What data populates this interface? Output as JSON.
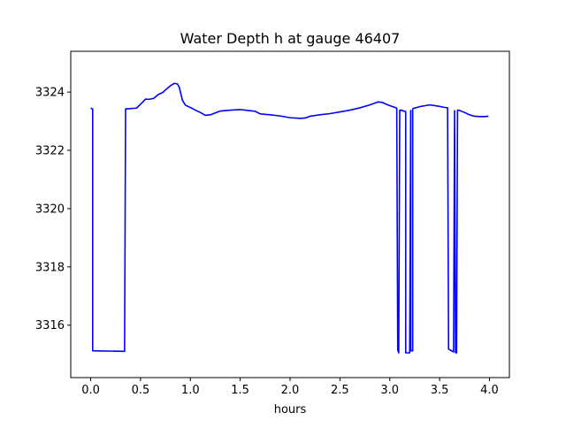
{
  "chart_data": {
    "type": "line",
    "title": "Water Depth h at gauge 46407",
    "xlabel": "hours",
    "ylabel": "",
    "xlim": [
      -0.2,
      4.2
    ],
    "ylim": [
      3314.2,
      3325.4
    ],
    "xticks": [
      0.0,
      0.5,
      1.0,
      1.5,
      2.0,
      2.5,
      3.0,
      3.5,
      4.0
    ],
    "xtick_labels": [
      "0.0",
      "0.5",
      "1.0",
      "1.5",
      "2.0",
      "2.5",
      "3.0",
      "3.5",
      "4.0"
    ],
    "yticks": [
      3316,
      3318,
      3320,
      3322,
      3324
    ],
    "ytick_labels": [
      "3316",
      "3318",
      "3320",
      "3322",
      "3324"
    ],
    "grid": false,
    "legend": "none",
    "line_color": "#0000ff",
    "series": [
      {
        "x": [
          0.0,
          0.02,
          0.02,
          0.34,
          0.35,
          0.46,
          0.52,
          0.55,
          0.58,
          0.63,
          0.68,
          0.72,
          0.76,
          0.8,
          0.84,
          0.87,
          0.89,
          0.92,
          0.95,
          1.0,
          1.05,
          1.1,
          1.15,
          1.2,
          1.3,
          1.4,
          1.5,
          1.6,
          1.65,
          1.7,
          1.8,
          1.9,
          2.0,
          2.1,
          2.15,
          2.2,
          2.3,
          2.4,
          2.5,
          2.6,
          2.7,
          2.8,
          2.88,
          2.92,
          2.98,
          3.03,
          3.07,
          3.08,
          3.09,
          3.1,
          3.11,
          3.16,
          3.16,
          3.2,
          3.21,
          3.21,
          3.23,
          3.23,
          3.24,
          3.25,
          3.25,
          3.3,
          3.4,
          3.48,
          3.54,
          3.58,
          3.59,
          3.64,
          3.65,
          3.66,
          3.67,
          3.68,
          3.69,
          3.69,
          3.75,
          3.8,
          3.85,
          3.9,
          3.95,
          3.99
        ],
        "y": [
          3323.45,
          3323.42,
          3315.12,
          3315.1,
          3323.42,
          3323.45,
          3323.65,
          3323.76,
          3323.75,
          3323.78,
          3323.92,
          3323.98,
          3324.1,
          3324.22,
          3324.3,
          3324.28,
          3324.15,
          3323.72,
          3323.55,
          3323.47,
          3323.38,
          3323.3,
          3323.2,
          3323.22,
          3323.35,
          3323.38,
          3323.4,
          3323.36,
          3323.34,
          3323.25,
          3323.22,
          3323.18,
          3323.12,
          3323.1,
          3323.11,
          3323.17,
          3323.22,
          3323.26,
          3323.32,
          3323.38,
          3323.46,
          3323.56,
          3323.66,
          3323.65,
          3323.56,
          3323.5,
          3323.45,
          3315.15,
          3315.05,
          3323.38,
          3323.38,
          3323.33,
          3315.05,
          3315.05,
          3323.37,
          3315.12,
          3315.12,
          3323.42,
          3323.45,
          3323.45,
          3323.45,
          3323.5,
          3323.56,
          3323.52,
          3323.48,
          3323.46,
          3315.18,
          3315.08,
          3323.36,
          3315.05,
          3315.05,
          3323.38,
          3323.38,
          3323.38,
          3323.3,
          3323.22,
          3323.17,
          3323.16,
          3323.16,
          3323.17
        ]
      }
    ]
  }
}
